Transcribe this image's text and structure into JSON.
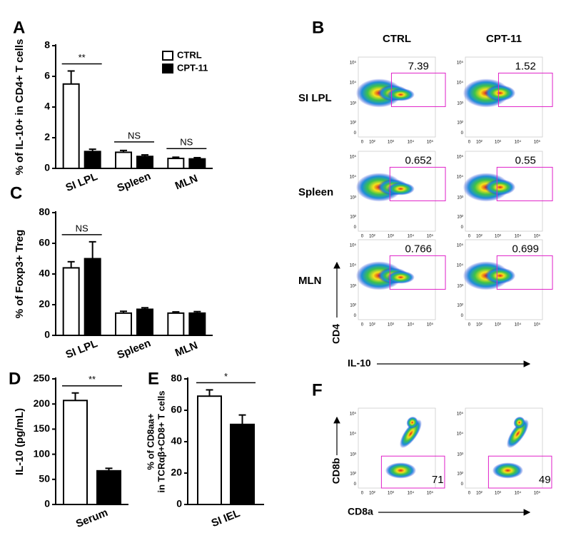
{
  "chart_data": [
    {
      "type": "bar",
      "panel": "A",
      "ylabel": "% of IL-10+ in CD4+ T cells",
      "categories": [
        "SI LPL",
        "Spleen",
        "MLN"
      ],
      "annotations": [
        "**",
        "NS",
        "NS"
      ],
      "series": [
        {
          "name": "CTRL",
          "color": "#ffffff",
          "values": [
            5.5,
            1.05,
            0.65
          ],
          "errors": [
            0.85,
            0.12,
            0.08
          ]
        },
        {
          "name": "CPT-11",
          "color": "#000000",
          "values": [
            1.1,
            0.78,
            0.62
          ],
          "errors": [
            0.15,
            0.1,
            0.08
          ]
        }
      ],
      "ylim": [
        0,
        8
      ],
      "yticks": [
        0,
        2,
        4,
        6,
        8
      ],
      "legend": "top-right"
    },
    {
      "type": "bar",
      "panel": "C",
      "ylabel": "% of Foxp3+ Treg",
      "categories": [
        "SI LPL",
        "Spleen",
        "MLN"
      ],
      "annotations": [
        "NS",
        null,
        null
      ],
      "series": [
        {
          "color": "#ffffff",
          "values": [
            44,
            14.5,
            14.5
          ],
          "errors": [
            4,
            1.2,
            0.8
          ]
        },
        {
          "color": "#000000",
          "values": [
            50,
            17,
            14.5
          ],
          "errors": [
            11,
            1,
            1
          ]
        }
      ],
      "ylim": [
        0,
        80
      ],
      "yticks": [
        0,
        20,
        40,
        60,
        80
      ]
    },
    {
      "type": "bar",
      "panel": "D",
      "ylabel": "IL-10 (pg/mL)",
      "categories": [
        "Serum"
      ],
      "annotations": [
        "**"
      ],
      "series": [
        {
          "color": "#ffffff",
          "values": [
            207
          ],
          "errors": [
            15
          ]
        },
        {
          "color": "#000000",
          "values": [
            67
          ],
          "errors": [
            5
          ]
        }
      ],
      "ylim": [
        0,
        250
      ],
      "yticks": [
        0,
        50,
        100,
        150,
        200,
        250
      ]
    },
    {
      "type": "bar",
      "panel": "E",
      "ylabel": [
        "% of CD8aa+",
        "in TCRαβ+CD8+ T cells"
      ],
      "categories": [
        "SI IEL"
      ],
      "annotations": [
        "*"
      ],
      "series": [
        {
          "color": "#ffffff",
          "values": [
            69
          ],
          "errors": [
            4
          ]
        },
        {
          "color": "#000000",
          "values": [
            51
          ],
          "errors": [
            6
          ]
        }
      ],
      "ylim": [
        0,
        80
      ],
      "yticks": [
        0,
        20,
        40,
        60,
        80
      ]
    }
  ],
  "flow": {
    "panel_b": "B",
    "panel_f": "F",
    "columns": [
      "CTRL",
      "CPT-11"
    ],
    "rows": [
      "SI LPL",
      "Spleen",
      "MLN"
    ],
    "gates": [
      [
        "7.39",
        "1.52"
      ],
      [
        "0.652",
        "0.55"
      ],
      [
        "0.766",
        "0.699"
      ]
    ],
    "b_xlabel": "IL-10",
    "b_ylabel": "CD4",
    "f_gates": [
      "71",
      "49"
    ],
    "f_xlabel": "CD8a",
    "f_ylabel": "CD8b",
    "ticks": [
      "0",
      "10²",
      "10³",
      "10⁴",
      "10⁵"
    ]
  }
}
